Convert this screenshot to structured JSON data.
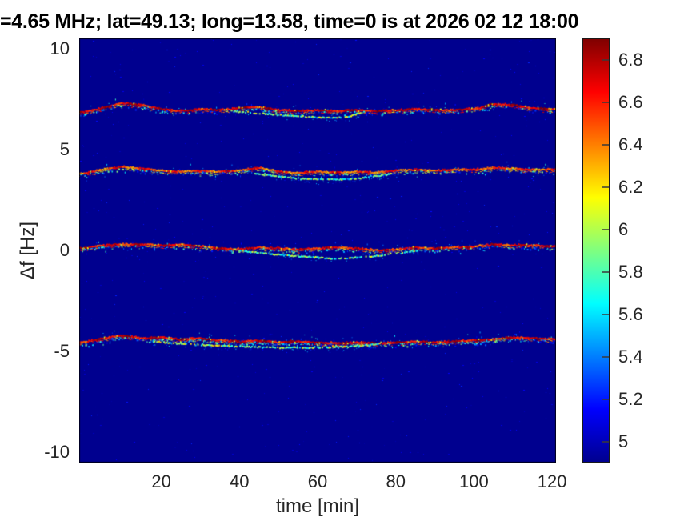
{
  "chart_data": {
    "type": "heatmap",
    "title": "=4.65 MHz;  lat=49.13; long=13.58, time=0 is at 2026 02 12 18:00",
    "xlabel": "time [min]",
    "ylabel": "Δf [Hz]",
    "xlim": [
      -1,
      121
    ],
    "ylim": [
      -10.5,
      10.5
    ],
    "clim": [
      4.9,
      6.9
    ],
    "x_ticks": [
      "20",
      "40",
      "60",
      "80",
      "100",
      "120"
    ],
    "y_ticks": [
      "10",
      "5",
      "0",
      "-5",
      "-10"
    ],
    "grid": false,
    "background_color": "#00008F",
    "axis_border_color": "#000000",
    "tick_label_color": "#262626",
    "colormap": "jet",
    "colormap_stops": [
      {
        "p": 0.0,
        "c": "#00008F"
      },
      {
        "p": 0.125,
        "c": "#0000FF"
      },
      {
        "p": 0.375,
        "c": "#00FFFF"
      },
      {
        "p": 0.625,
        "c": "#FFFF00"
      },
      {
        "p": 0.875,
        "c": "#FF0000"
      },
      {
        "p": 1.0,
        "c": "#800000"
      }
    ],
    "colorbar": {
      "position": "right",
      "tick_labels": [
        "6.8",
        "6.6",
        "6.4",
        "6.2",
        "6",
        "5.8",
        "5.6",
        "5.4",
        "5.2",
        "5"
      ],
      "tick_values": [
        6.8,
        6.6,
        6.4,
        6.2,
        6.0,
        5.8,
        5.6,
        5.4,
        5.2,
        5.0
      ]
    },
    "traces": [
      {
        "name": "doppler-mode-plus7Hz",
        "x": [
          0,
          5,
          10,
          15,
          20,
          25,
          30,
          35,
          40,
          45,
          50,
          55,
          60,
          65,
          70,
          75,
          80,
          85,
          90,
          95,
          100,
          105,
          110,
          115,
          120
        ],
        "f": [
          6.85,
          7.05,
          7.3,
          7.2,
          7.0,
          6.9,
          7.0,
          6.95,
          7.05,
          7.1,
          6.95,
          6.9,
          6.95,
          6.9,
          6.95,
          6.9,
          6.95,
          7.0,
          6.95,
          6.95,
          7.0,
          7.25,
          7.2,
          7.05,
          7.0
        ],
        "core_value_range": [
          6.5,
          6.9
        ],
        "speckle_density": 1.0,
        "branch": {
          "x": [
            38,
            45,
            52,
            58,
            64,
            68,
            72
          ],
          "f": [
            6.9,
            6.78,
            6.68,
            6.6,
            6.57,
            6.62,
            6.85
          ],
          "value_range": [
            5.5,
            6.25
          ]
        }
      },
      {
        "name": "doppler-mode-plus4Hz",
        "x": [
          0,
          5,
          10,
          15,
          20,
          25,
          30,
          35,
          40,
          45,
          50,
          55,
          60,
          65,
          70,
          75,
          80,
          85,
          90,
          95,
          100,
          105,
          110,
          115,
          120
        ],
        "f": [
          3.8,
          4.0,
          4.15,
          4.05,
          3.95,
          3.9,
          3.95,
          3.9,
          3.95,
          4.1,
          3.9,
          3.85,
          3.9,
          3.85,
          3.9,
          3.85,
          3.95,
          4.0,
          3.95,
          4.0,
          4.0,
          4.1,
          4.05,
          4.0,
          4.0
        ],
        "core_value_range": [
          6.3,
          6.75
        ],
        "speckle_density": 0.95,
        "branch": {
          "x": [
            44,
            50,
            56,
            62,
            68,
            74,
            79
          ],
          "f": [
            3.82,
            3.66,
            3.55,
            3.5,
            3.52,
            3.65,
            3.8
          ],
          "value_range": [
            5.45,
            6.1
          ]
        }
      },
      {
        "name": "doppler-mode-0Hz",
        "x": [
          0,
          5,
          10,
          15,
          20,
          25,
          30,
          35,
          40,
          45,
          50,
          55,
          60,
          65,
          70,
          75,
          80,
          85,
          90,
          95,
          100,
          105,
          110,
          115,
          120
        ],
        "f": [
          0.1,
          0.25,
          0.3,
          0.3,
          0.25,
          0.3,
          0.2,
          0.1,
          0.05,
          0.15,
          0.1,
          0.05,
          0.1,
          0.15,
          0.1,
          0.0,
          0.05,
          0.15,
          0.1,
          0.15,
          0.2,
          0.3,
          0.25,
          0.25,
          0.2
        ],
        "core_value_range": [
          6.4,
          6.85
        ],
        "speckle_density": 1.0,
        "branch": {
          "x": [
            40,
            48,
            56,
            64,
            72,
            79,
            86
          ],
          "f": [
            0.0,
            -0.18,
            -0.3,
            -0.42,
            -0.33,
            -0.18,
            0.0
          ],
          "value_range": [
            5.5,
            6.15
          ]
        }
      },
      {
        "name": "doppler-mode-minus4p5Hz",
        "x": [
          0,
          5,
          10,
          15,
          20,
          25,
          30,
          35,
          40,
          45,
          50,
          55,
          60,
          65,
          70,
          75,
          80,
          85,
          90,
          95,
          100,
          105,
          110,
          115,
          120
        ],
        "f": [
          -4.55,
          -4.35,
          -4.2,
          -4.35,
          -4.3,
          -4.4,
          -4.35,
          -4.45,
          -4.5,
          -4.45,
          -4.55,
          -4.5,
          -4.55,
          -4.6,
          -4.55,
          -4.6,
          -4.55,
          -4.5,
          -4.55,
          -4.5,
          -4.45,
          -4.4,
          -4.3,
          -4.35,
          -4.4
        ],
        "core_value_range": [
          6.5,
          6.9
        ],
        "speckle_density": 1.55,
        "branch": {
          "x": [
            18,
            28,
            38,
            48,
            58,
            68,
            76
          ],
          "f": [
            -4.5,
            -4.66,
            -4.74,
            -4.8,
            -4.82,
            -4.76,
            -4.62
          ],
          "value_range": [
            5.5,
            6.3
          ]
        }
      }
    ]
  }
}
